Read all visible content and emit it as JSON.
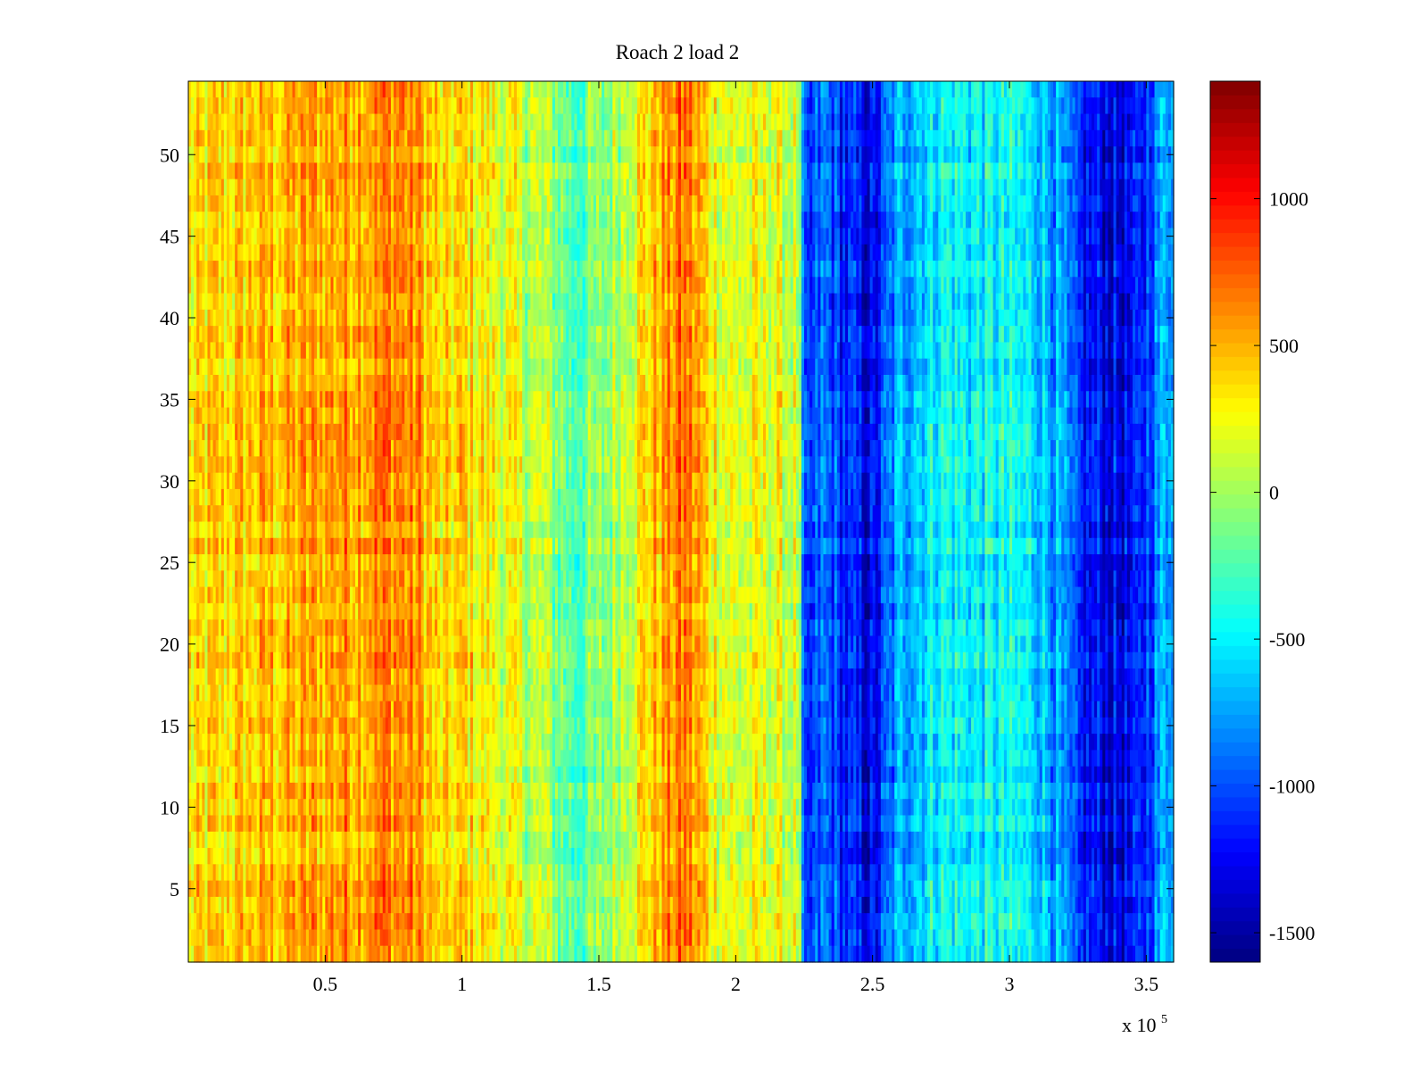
{
  "chart_data": {
    "type": "heatmap",
    "title": "Roach 2 load 2",
    "xlabel": "",
    "ylabel": "",
    "x_exponent_label": {
      "base": "x 10",
      "exponent": "5"
    },
    "xlim": [
      0,
      360000
    ],
    "ylim": [
      0.5,
      54.5
    ],
    "x_ticks": [
      50000,
      100000,
      150000,
      200000,
      250000,
      300000,
      350000
    ],
    "x_tick_labels": [
      "0.5",
      "1",
      "1.5",
      "2",
      "2.5",
      "3",
      "3.5"
    ],
    "y_ticks": [
      5,
      10,
      15,
      20,
      25,
      30,
      35,
      40,
      45,
      50
    ],
    "y_tick_labels": [
      "5",
      "10",
      "15",
      "20",
      "25",
      "30",
      "35",
      "40",
      "45",
      "50"
    ],
    "rows": 54,
    "colormap": "jet",
    "color_limits": [
      -1600,
      1400
    ],
    "colorbar": {
      "ticks": [
        1000,
        500,
        0,
        -500,
        -1000,
        -1500
      ],
      "tick_labels": [
        "1000",
        "500",
        "0",
        "-500",
        "-1000",
        "-1500"
      ]
    },
    "column_profile": {
      "x": [
        0,
        20000,
        40000,
        60000,
        75000,
        85000,
        92000,
        100000,
        115000,
        130000,
        140000,
        150000,
        165000,
        175000,
        182000,
        190000,
        200000,
        215000,
        223000,
        225000,
        232000,
        240000,
        250000,
        260000,
        275000,
        290000,
        300000,
        310000,
        318000,
        325000,
        335000,
        345000,
        352000,
        360000
      ],
      "value": [
        280,
        420,
        500,
        580,
        650,
        550,
        300,
        380,
        200,
        40,
        -220,
        -120,
        320,
        560,
        680,
        350,
        150,
        200,
        100,
        -1250,
        -900,
        -1150,
        -1300,
        -700,
        -450,
        -500,
        -480,
        -550,
        -800,
        -1150,
        -1250,
        -1300,
        -950,
        -550
      ]
    },
    "grid": false,
    "legend": "colorbar-right"
  }
}
